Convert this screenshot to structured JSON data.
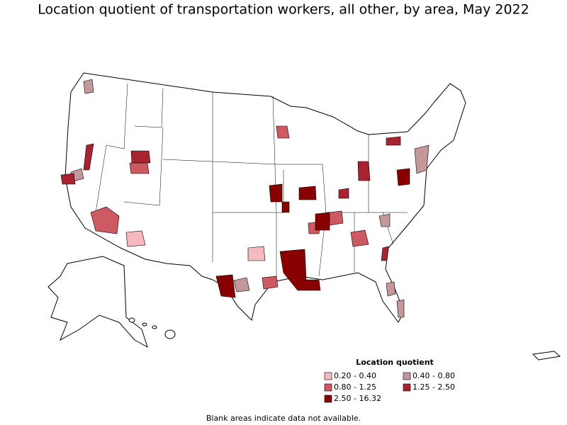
{
  "title": "Location quotient of transportation workers, all other, by area, May 2022",
  "legend": {
    "title": "Location quotient",
    "items": [
      {
        "label": "0.20 - 0.40",
        "color": "#f7b9c0"
      },
      {
        "label": "0.40 - 0.80",
        "color": "#c4989b"
      },
      {
        "label": "0.80 - 1.25",
        "color": "#cd5963"
      },
      {
        "label": "1.25 - 2.50",
        "color": "#a8232f"
      },
      {
        "label": "2.50 - 16.32",
        "color": "#880000"
      }
    ]
  },
  "footnote": "Blank areas indicate data not available."
}
